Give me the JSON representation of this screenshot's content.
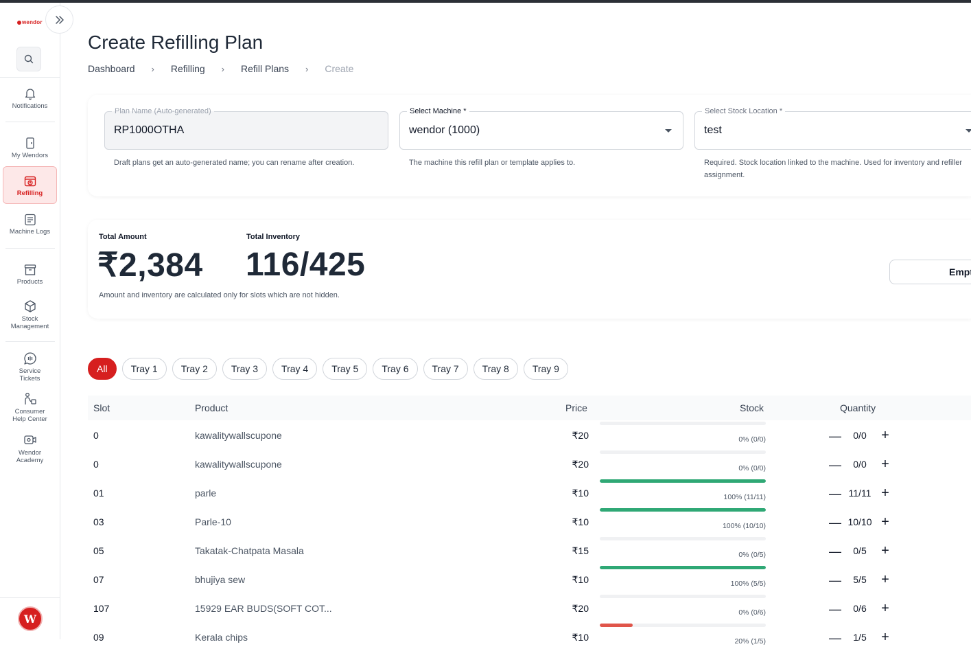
{
  "brand": {
    "logo_text": "wendor",
    "accent": "#d61f1f"
  },
  "sidebar": {
    "items": [
      {
        "label": "Notifications",
        "icon": "bell-icon"
      },
      {
        "label": "My Wendors",
        "icon": "machine-icon"
      },
      {
        "label": "Refilling",
        "icon": "refill-icon",
        "active": true
      },
      {
        "label": "Machine Logs",
        "icon": "logs-icon"
      },
      {
        "label": "Products",
        "icon": "archive-icon"
      },
      {
        "label": "Stock Management",
        "label_line1": "Stock",
        "label_line2": "Management",
        "icon": "box-icon"
      },
      {
        "label": "Service Tickets",
        "label_line1": "Service",
        "label_line2": "Tickets",
        "icon": "chat-icon"
      },
      {
        "label": "Consumer Help Center",
        "label_line1": "Consumer",
        "label_line2": "Help Center",
        "icon": "help-person-icon"
      },
      {
        "label": "Wendor Academy",
        "label_line1": "Wendor",
        "label_line2": "Academy",
        "icon": "video-icon"
      }
    ]
  },
  "header": {
    "title": "Create Refilling Plan",
    "breadcrumb": [
      "Dashboard",
      "Refilling",
      "Refill Plans",
      "Create"
    ]
  },
  "form": {
    "plan_name": {
      "label": "Plan Name (Auto-generated)",
      "value": "RP1000OTHA",
      "helper": "Draft plans get an auto-generated name; you can rename after creation."
    },
    "machine": {
      "label": "Select Machine *",
      "value": "wendor (1000)",
      "helper": "The machine this refill plan or template applies to."
    },
    "stock_location": {
      "label": "Select Stock Location *",
      "value": "test",
      "helper": "Required. Stock location linked to the machine. Used for inventory and refiller assignment."
    }
  },
  "summary": {
    "amount_label": "Total Amount",
    "amount_value": "₹2,384",
    "inventory_label": "Total Inventory",
    "inventory_value": "116/425",
    "note": "Amount and inventory are calculated only for slots which are not hidden.",
    "empty_button": "Empt"
  },
  "tabs": [
    "All",
    "Tray 1",
    "Tray 2",
    "Tray 3",
    "Tray 4",
    "Tray 5",
    "Tray 6",
    "Tray 7",
    "Tray 8",
    "Tray 9"
  ],
  "table": {
    "columns": [
      "Slot",
      "Product",
      "Price",
      "Stock",
      "Quantity"
    ],
    "rows": [
      {
        "slot": "0",
        "product": "kawalitywallscupone",
        "price": "₹20",
        "pct_label": "0% (0/0)",
        "fill": 0,
        "qty": "0/0"
      },
      {
        "slot": "0",
        "product": "kawalitywallscupone",
        "price": "₹20",
        "pct_label": "0% (0/0)",
        "fill": 0,
        "qty": "0/0"
      },
      {
        "slot": "01",
        "product": "parle",
        "price": "₹10",
        "pct_label": "100% (11/11)",
        "fill": 1.0,
        "qty": "11/11"
      },
      {
        "slot": "03",
        "product": "Parle-10",
        "price": "₹10",
        "pct_label": "100% (10/10)",
        "fill": 1.0,
        "qty": "10/10"
      },
      {
        "slot": "05",
        "product": "Takatak-Chatpata Masala",
        "price": "₹15",
        "pct_label": "0% (0/5)",
        "fill": 0,
        "qty": "0/5"
      },
      {
        "slot": "07",
        "product": "bhujiya sew",
        "price": "₹10",
        "pct_label": "100% (5/5)",
        "fill": 1.0,
        "qty": "5/5"
      },
      {
        "slot": "107",
        "product": "15929 EAR BUDS(SOFT COT...",
        "price": "₹20",
        "pct_label": "0% (0/6)",
        "fill": 0,
        "qty": "0/6"
      },
      {
        "slot": "09",
        "product": "Kerala chips",
        "price": "₹10",
        "pct_label": "20% (1/5)",
        "fill": 0.2,
        "qty": "1/5"
      }
    ],
    "colors": {
      "full": "#2fa875",
      "low": "#e0554a"
    },
    "minus_symbol": "—",
    "plus_symbol": "+"
  }
}
